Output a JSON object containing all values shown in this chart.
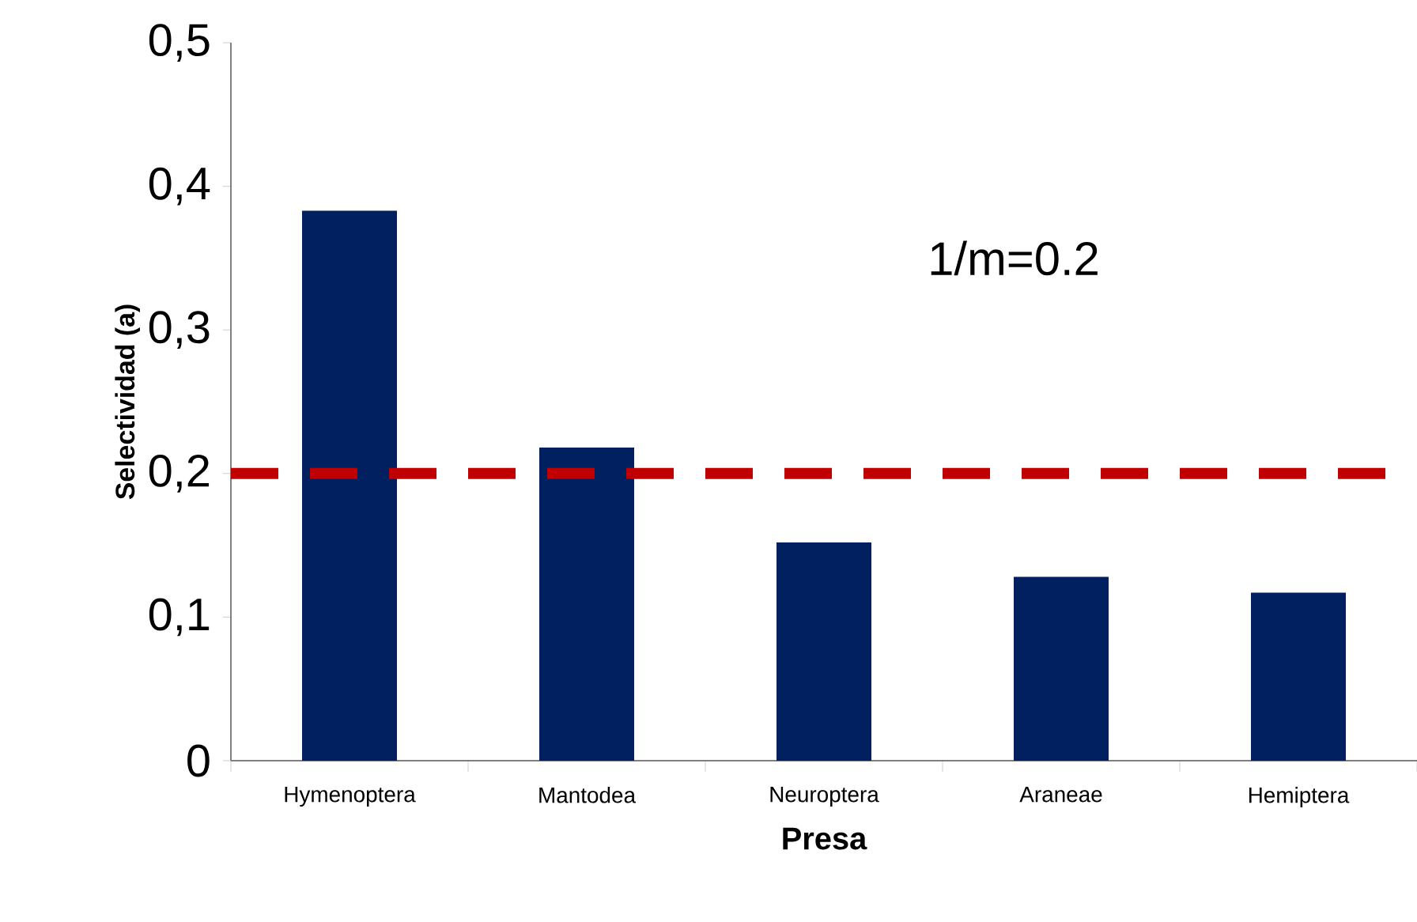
{
  "chart_data": {
    "type": "bar",
    "xlabel": "Presa",
    "ylabel": "Selectividad (a)",
    "categories": [
      "Hymenoptera",
      "Mantodea",
      "Neuroptera",
      "Araneae",
      "Hemiptera"
    ],
    "values": [
      0.383,
      0.218,
      0.152,
      0.128,
      0.117
    ],
    "color": "#002060",
    "ylim": [
      0,
      0.5
    ],
    "yticks": [
      0,
      {
        "value": 0.1,
        "label": "0,1"
      },
      {
        "value": 0.2,
        "label": "0,2"
      },
      {
        "value": 0.3,
        "label": "0,3"
      },
      {
        "value": 0.4,
        "label": "0,4"
      },
      {
        "value": 0.5,
        "label": "0,5"
      }
    ],
    "ref_lines": [
      {
        "axis": "y",
        "value": 0.2,
        "color": "#c00000",
        "line_style": "dashed"
      }
    ],
    "annotations": [
      "1/m=0.2"
    ]
  }
}
